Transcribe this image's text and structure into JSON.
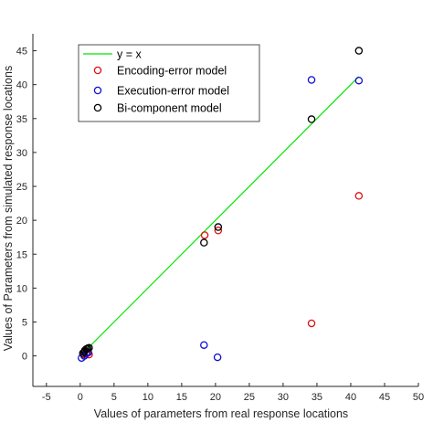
{
  "chart_data": {
    "type": "scatter",
    "xlabel": "Values of parameters from real response locations",
    "ylabel": "Values of Parameters from simulated response locations",
    "xlim": [
      -7,
      50
    ],
    "ylim": [
      -4.5,
      47.5
    ],
    "xticks": [
      -5,
      0,
      5,
      10,
      15,
      20,
      25,
      30,
      35,
      40,
      45,
      50
    ],
    "yticks": [
      0,
      5,
      10,
      15,
      20,
      25,
      30,
      35,
      40,
      45
    ],
    "grid": false,
    "legend_position": "top-left",
    "reference_line": {
      "label": "y = x",
      "x": [
        0.3,
        41.2
      ],
      "y": [
        0.3,
        41.2
      ],
      "color": "#00e600"
    },
    "series": [
      {
        "name": "Encoding-error model",
        "color": "#e01010",
        "points": [
          [
            0.5,
            0.2
          ],
          [
            0.9,
            0.3
          ],
          [
            1.1,
            0.6
          ],
          [
            1.3,
            0.2
          ],
          [
            0.7,
            0.8
          ],
          [
            18.4,
            17.8
          ],
          [
            20.4,
            18.5
          ],
          [
            34.2,
            4.8
          ],
          [
            41.2,
            23.6
          ]
        ]
      },
      {
        "name": "Execution-error model",
        "color": "#1010d0",
        "points": [
          [
            0.2,
            -0.3
          ],
          [
            0.6,
            0.0
          ],
          [
            0.9,
            0.4
          ],
          [
            1.2,
            0.5
          ],
          [
            18.3,
            1.6
          ],
          [
            20.3,
            -0.2
          ],
          [
            34.2,
            40.7
          ],
          [
            41.2,
            40.6
          ]
        ]
      },
      {
        "name": "Bi-component model",
        "color": "#000000",
        "points": [
          [
            0.4,
            0.4
          ],
          [
            0.7,
            0.8
          ],
          [
            0.9,
            1.0
          ],
          [
            1.1,
            1.1
          ],
          [
            1.3,
            1.2
          ],
          [
            0.6,
            0.6
          ],
          [
            18.3,
            16.7
          ],
          [
            20.4,
            19.0
          ],
          [
            34.2,
            34.9
          ],
          [
            41.2,
            45.0
          ]
        ]
      }
    ]
  }
}
